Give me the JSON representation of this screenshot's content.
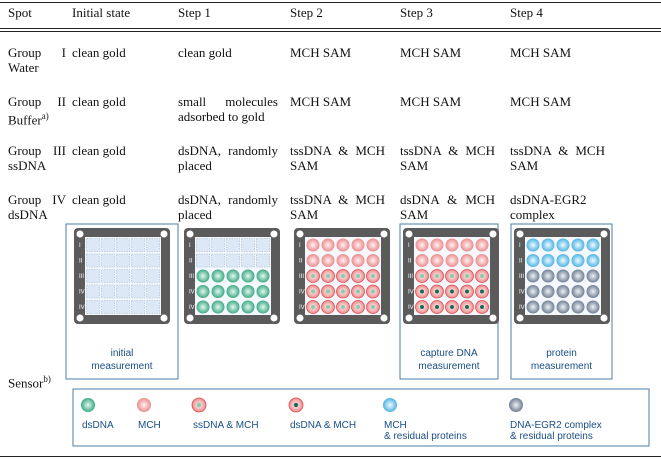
{
  "header": [
    "Spot",
    "Initial state",
    "Step 1",
    "Step 2",
    "Step 3",
    "Step 4"
  ],
  "rows": [
    {
      "spot": "Group I Water",
      "cells": [
        "clean gold",
        "clean gold",
        "MCH SAM",
        "MCH SAM",
        "MCH SAM"
      ]
    },
    {
      "spot": "Group II Buffer",
      "note": "a)",
      "cells": [
        "clean gold",
        "small molecules adsorbed to gold",
        "MCH SAM",
        "MCH SAM",
        "MCH SAM"
      ]
    },
    {
      "spot": "Group III ssDNA",
      "cells": [
        "clean gold",
        "dsDNA, randomly placed",
        "tssDNA & MCH SAM",
        "tssDNA & MCH SAM",
        "tssDNA & MCH SAM"
      ]
    },
    {
      "spot": "Group IV dsDNA",
      "cells": [
        "clean gold",
        "dsDNA, randomly placed",
        "tssDNA & MCH SAM",
        "dsDNA & MCH SAM",
        "dsDNA-EGR2 complex"
      ]
    }
  ],
  "sensor_row": {
    "spot": "Sensor",
    "note": "b)",
    "row_labels": [
      "I",
      "II",
      "III",
      "IV",
      "IV"
    ],
    "panel_labels": [
      [
        "initial",
        "measurement"
      ],
      null,
      null,
      [
        "capture DNA",
        "measurement"
      ],
      [
        "protein",
        "measurement"
      ]
    ]
  },
  "legend": [
    [
      "dsDNA"
    ],
    [
      "MCH"
    ],
    [
      "ssDNA & MCH"
    ],
    [
      "dsDNA & MCH"
    ],
    [
      "MCH",
      "& residual proteins"
    ],
    [
      "DNA-EGR2 complex",
      "& residual proteins"
    ]
  ]
}
